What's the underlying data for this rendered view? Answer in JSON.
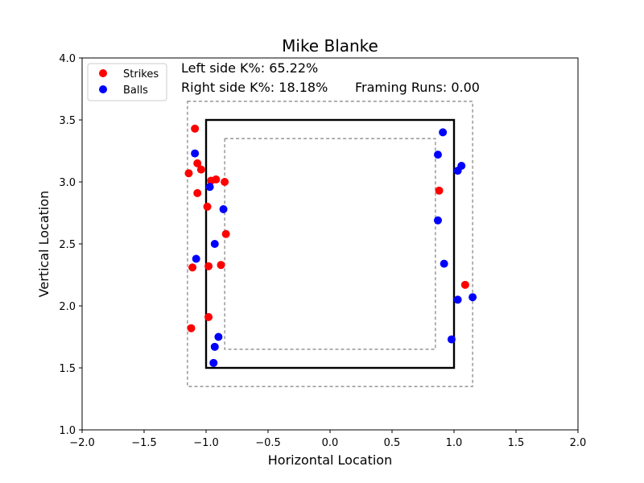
{
  "chart_data": {
    "type": "scatter",
    "title": "Mike Blanke",
    "xlabel": "Horizontal Location",
    "ylabel": "Vertical Location",
    "xlim": [
      -2.0,
      2.0
    ],
    "ylim": [
      1.0,
      4.0
    ],
    "xticks": [
      "−2.0",
      "−1.5",
      "−1.0",
      "−0.5",
      "0.0",
      "0.5",
      "1.0",
      "1.5",
      "2.0"
    ],
    "yticks": [
      "1.0",
      "1.5",
      "2.0",
      "2.5",
      "3.0",
      "3.5",
      "4.0"
    ],
    "grid": false,
    "legend_position": "top-left",
    "annotations": {
      "left_k": "Left side K%: 65.22%",
      "right_k": "Right side K%: 18.18%",
      "framing": "Framing Runs: 0.00"
    },
    "zones": {
      "strike_zone": {
        "x": [
          -1.0,
          1.0
        ],
        "y": [
          1.5,
          3.5
        ]
      },
      "outer_zone": {
        "x": [
          -1.15,
          1.15
        ],
        "y": [
          1.35,
          3.65
        ]
      },
      "inner_zone": {
        "x": [
          -0.85,
          0.85
        ],
        "y": [
          1.65,
          3.35
        ]
      }
    },
    "series": [
      {
        "name": "Strikes",
        "color": "#ff0000",
        "points": [
          {
            "x": -1.09,
            "y": 3.43
          },
          {
            "x": -1.07,
            "y": 3.15
          },
          {
            "x": -1.04,
            "y": 3.1
          },
          {
            "x": -1.14,
            "y": 3.07
          },
          {
            "x": -0.96,
            "y": 3.01
          },
          {
            "x": -0.92,
            "y": 3.02
          },
          {
            "x": -0.85,
            "y": 3.0
          },
          {
            "x": -1.07,
            "y": 2.91
          },
          {
            "x": -0.99,
            "y": 2.8
          },
          {
            "x": -0.84,
            "y": 2.58
          },
          {
            "x": -1.11,
            "y": 2.31
          },
          {
            "x": -0.98,
            "y": 2.32
          },
          {
            "x": -0.88,
            "y": 2.33
          },
          {
            "x": -0.98,
            "y": 1.91
          },
          {
            "x": -1.12,
            "y": 1.82
          },
          {
            "x": 0.88,
            "y": 2.93
          },
          {
            "x": 1.09,
            "y": 2.17
          }
        ]
      },
      {
        "name": "Balls",
        "color": "#0000ff",
        "points": [
          {
            "x": -1.09,
            "y": 3.23
          },
          {
            "x": -0.97,
            "y": 2.96
          },
          {
            "x": -0.86,
            "y": 2.78
          },
          {
            "x": -0.93,
            "y": 2.5
          },
          {
            "x": -1.08,
            "y": 2.38
          },
          {
            "x": -0.9,
            "y": 1.75
          },
          {
            "x": -0.93,
            "y": 1.67
          },
          {
            "x": -0.94,
            "y": 1.54
          },
          {
            "x": 0.91,
            "y": 3.4
          },
          {
            "x": 0.87,
            "y": 3.22
          },
          {
            "x": 1.06,
            "y": 3.13
          },
          {
            "x": 1.03,
            "y": 3.09
          },
          {
            "x": 0.87,
            "y": 2.69
          },
          {
            "x": 0.92,
            "y": 2.34
          },
          {
            "x": 1.15,
            "y": 2.07
          },
          {
            "x": 1.03,
            "y": 2.05
          },
          {
            "x": 0.98,
            "y": 1.73
          }
        ]
      }
    ]
  }
}
